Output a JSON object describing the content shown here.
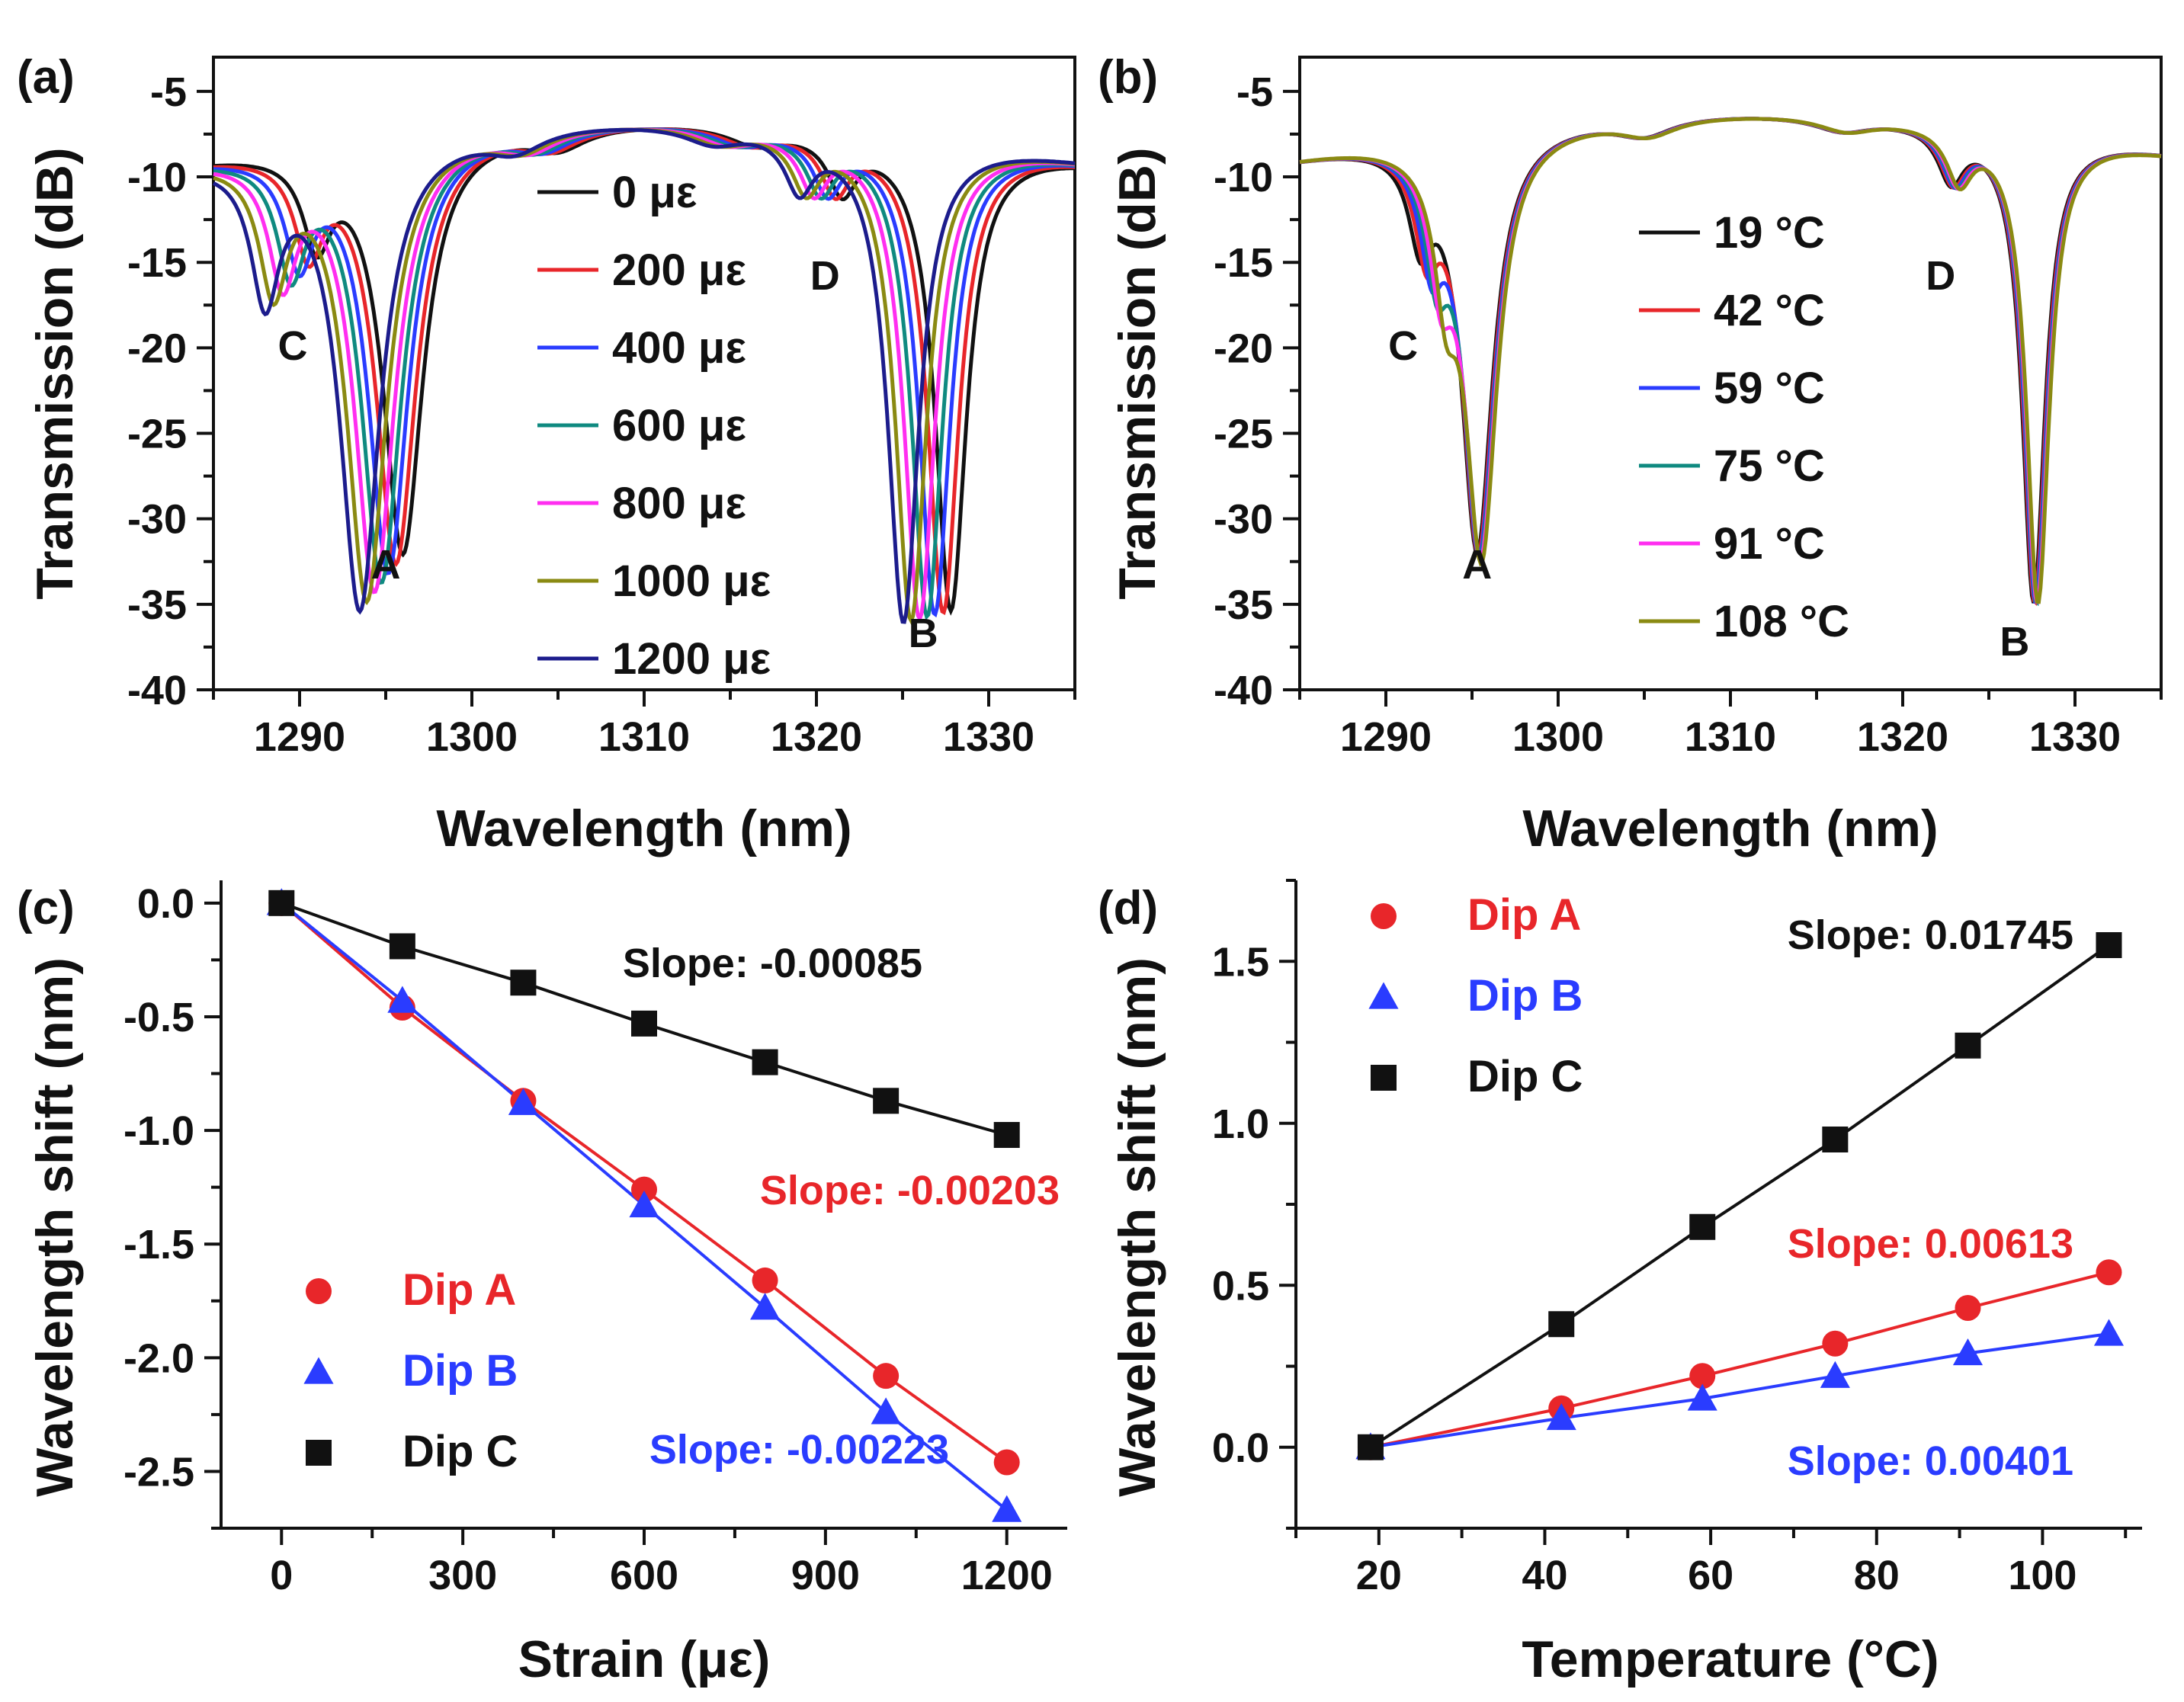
{
  "chart_data": [
    {
      "panel": "(a)",
      "type": "line",
      "xlabel": "Wavelength (nm)",
      "ylabel": "Transmission (dB)",
      "xlim": [
        1285,
        1335
      ],
      "ylim": [
        -40,
        -3
      ],
      "xticks": [
        1290,
        1300,
        1310,
        1320,
        1330
      ],
      "yticks": [
        -40,
        -35,
        -30,
        -25,
        -20,
        -15,
        -10,
        -5
      ],
      "legend_position": "center",
      "series": [
        {
          "name": "0 με",
          "color": "#111111",
          "shift_nm": 0.0
        },
        {
          "name": "200 με",
          "color": "#e8262a",
          "shift_nm": -0.4
        },
        {
          "name": "400 με",
          "color": "#2a3cff",
          "shift_nm": -0.85
        },
        {
          "name": "600 με",
          "color": "#0f8a80",
          "shift_nm": -1.25
        },
        {
          "name": "800 με",
          "color": "#ff2ef0",
          "shift_nm": -1.65
        },
        {
          "name": "1000 με",
          "color": "#8a8a12",
          "shift_nm": -2.1
        },
        {
          "name": "1200 με",
          "color": "#1c1c8c",
          "shift_nm": -2.5
        }
      ],
      "annotations": [
        {
          "text": "A",
          "x": 1295,
          "y": -33.5
        },
        {
          "text": "B",
          "x": 1326.2,
          "y": -37.5
        },
        {
          "text": "C",
          "x": 1289.6,
          "y": -20.7
        },
        {
          "text": "D",
          "x": 1320.5,
          "y": -16.6
        }
      ]
    },
    {
      "panel": "(b)",
      "type": "line",
      "xlabel": "Wavelength (nm)",
      "ylabel": "Transmission (dB)",
      "xlim": [
        1285,
        1335
      ],
      "ylim": [
        -40,
        -3
      ],
      "xticks": [
        1290,
        1300,
        1310,
        1320,
        1330
      ],
      "yticks": [
        -40,
        -35,
        -30,
        -25,
        -20,
        -15,
        -10,
        -5
      ],
      "legend_position": "center",
      "series": [
        {
          "name": "19 °C",
          "color": "#111111",
          "shift_nm": 0.0
        },
        {
          "name": "42 °C",
          "color": "#e8262a",
          "shift_nm": 0.06
        },
        {
          "name": "59 °C",
          "color": "#2a3cff",
          "shift_nm": 0.11
        },
        {
          "name": "75 °C",
          "color": "#0f8a80",
          "shift_nm": 0.16
        },
        {
          "name": "91 °C",
          "color": "#ff2ef0",
          "shift_nm": 0.2
        },
        {
          "name": "108 °C",
          "color": "#8a8a12",
          "shift_nm": 0.25
        }
      ],
      "annotations": [
        {
          "text": "A",
          "x": 1295.3,
          "y": -33.5
        },
        {
          "text": "B",
          "x": 1326.5,
          "y": -38
        },
        {
          "text": "C",
          "x": 1291,
          "y": -20.7
        },
        {
          "text": "D",
          "x": 1322.2,
          "y": -16.6
        }
      ]
    },
    {
      "panel": "(c)",
      "type": "scatter",
      "xlabel": "Strain (με)",
      "ylabel": "Wavelength shift (nm)",
      "xlim": [
        -100,
        1300
      ],
      "ylim": [
        -2.75,
        0.1
      ],
      "xticks": [
        0,
        300,
        600,
        900,
        1200
      ],
      "yticks": [
        0.0,
        -0.5,
        -1.0,
        -1.5,
        -2.0,
        -2.5
      ],
      "ytick_labels": [
        "0.0",
        "-0.5",
        "-1.0",
        "-1.5",
        "-2.0",
        "-2.5"
      ],
      "x": [
        0,
        200,
        400,
        600,
        800,
        1000,
        1200
      ],
      "series": [
        {
          "name": "Dip A",
          "color": "#e8262a",
          "marker": "circle",
          "values": [
            0,
            -0.46,
            -0.87,
            -1.26,
            -1.66,
            -2.08,
            -2.46
          ],
          "fit_slope": -0.00203,
          "slope_label": "Slope: -0.00203"
        },
        {
          "name": "Dip B",
          "color": "#2a3cff",
          "marker": "triangle",
          "values": [
            0,
            -0.43,
            -0.88,
            -1.33,
            -1.78,
            -2.24,
            -2.67
          ],
          "fit_slope": -0.00223,
          "slope_label": "Slope: -0.00223"
        },
        {
          "name": "Dip C",
          "color": "#111111",
          "marker": "square",
          "values": [
            0,
            -0.19,
            -0.35,
            -0.53,
            -0.7,
            -0.87,
            -1.02
          ],
          "fit_slope": -0.00085,
          "slope_label": "Slope: -0.00085"
        }
      ],
      "legend_position": "bottom-left"
    },
    {
      "panel": "(d)",
      "type": "scatter",
      "xlabel": "Temperature (°C)",
      "ylabel": "Wavelength shift (nm)",
      "xlim": [
        10,
        112
      ],
      "ylim": [
        -0.25,
        1.75
      ],
      "xticks": [
        20,
        40,
        60,
        80,
        100
      ],
      "yticks": [
        0.0,
        0.5,
        1.0,
        1.5
      ],
      "ytick_labels": [
        "0.0",
        "0.5",
        "1.0",
        "1.5"
      ],
      "x": [
        19,
        42,
        59,
        75,
        91,
        108
      ],
      "series": [
        {
          "name": "Dip A",
          "color": "#e8262a",
          "marker": "circle",
          "values": [
            0,
            0.12,
            0.22,
            0.32,
            0.43,
            0.54
          ],
          "fit_slope": 0.00613,
          "slope_label": "Slope: 0.00613"
        },
        {
          "name": "Dip B",
          "color": "#2a3cff",
          "marker": "triangle",
          "values": [
            0,
            0.09,
            0.15,
            0.22,
            0.29,
            0.35
          ],
          "fit_slope": 0.00401,
          "slope_label": "Slope: 0.00401"
        },
        {
          "name": "Dip C",
          "color": "#111111",
          "marker": "square",
          "values": [
            0,
            0.38,
            0.68,
            0.95,
            1.24,
            1.55
          ],
          "fit_slope": 0.01745,
          "slope_label": "Slope: 0.01745"
        }
      ],
      "legend_position": "top-left"
    }
  ]
}
